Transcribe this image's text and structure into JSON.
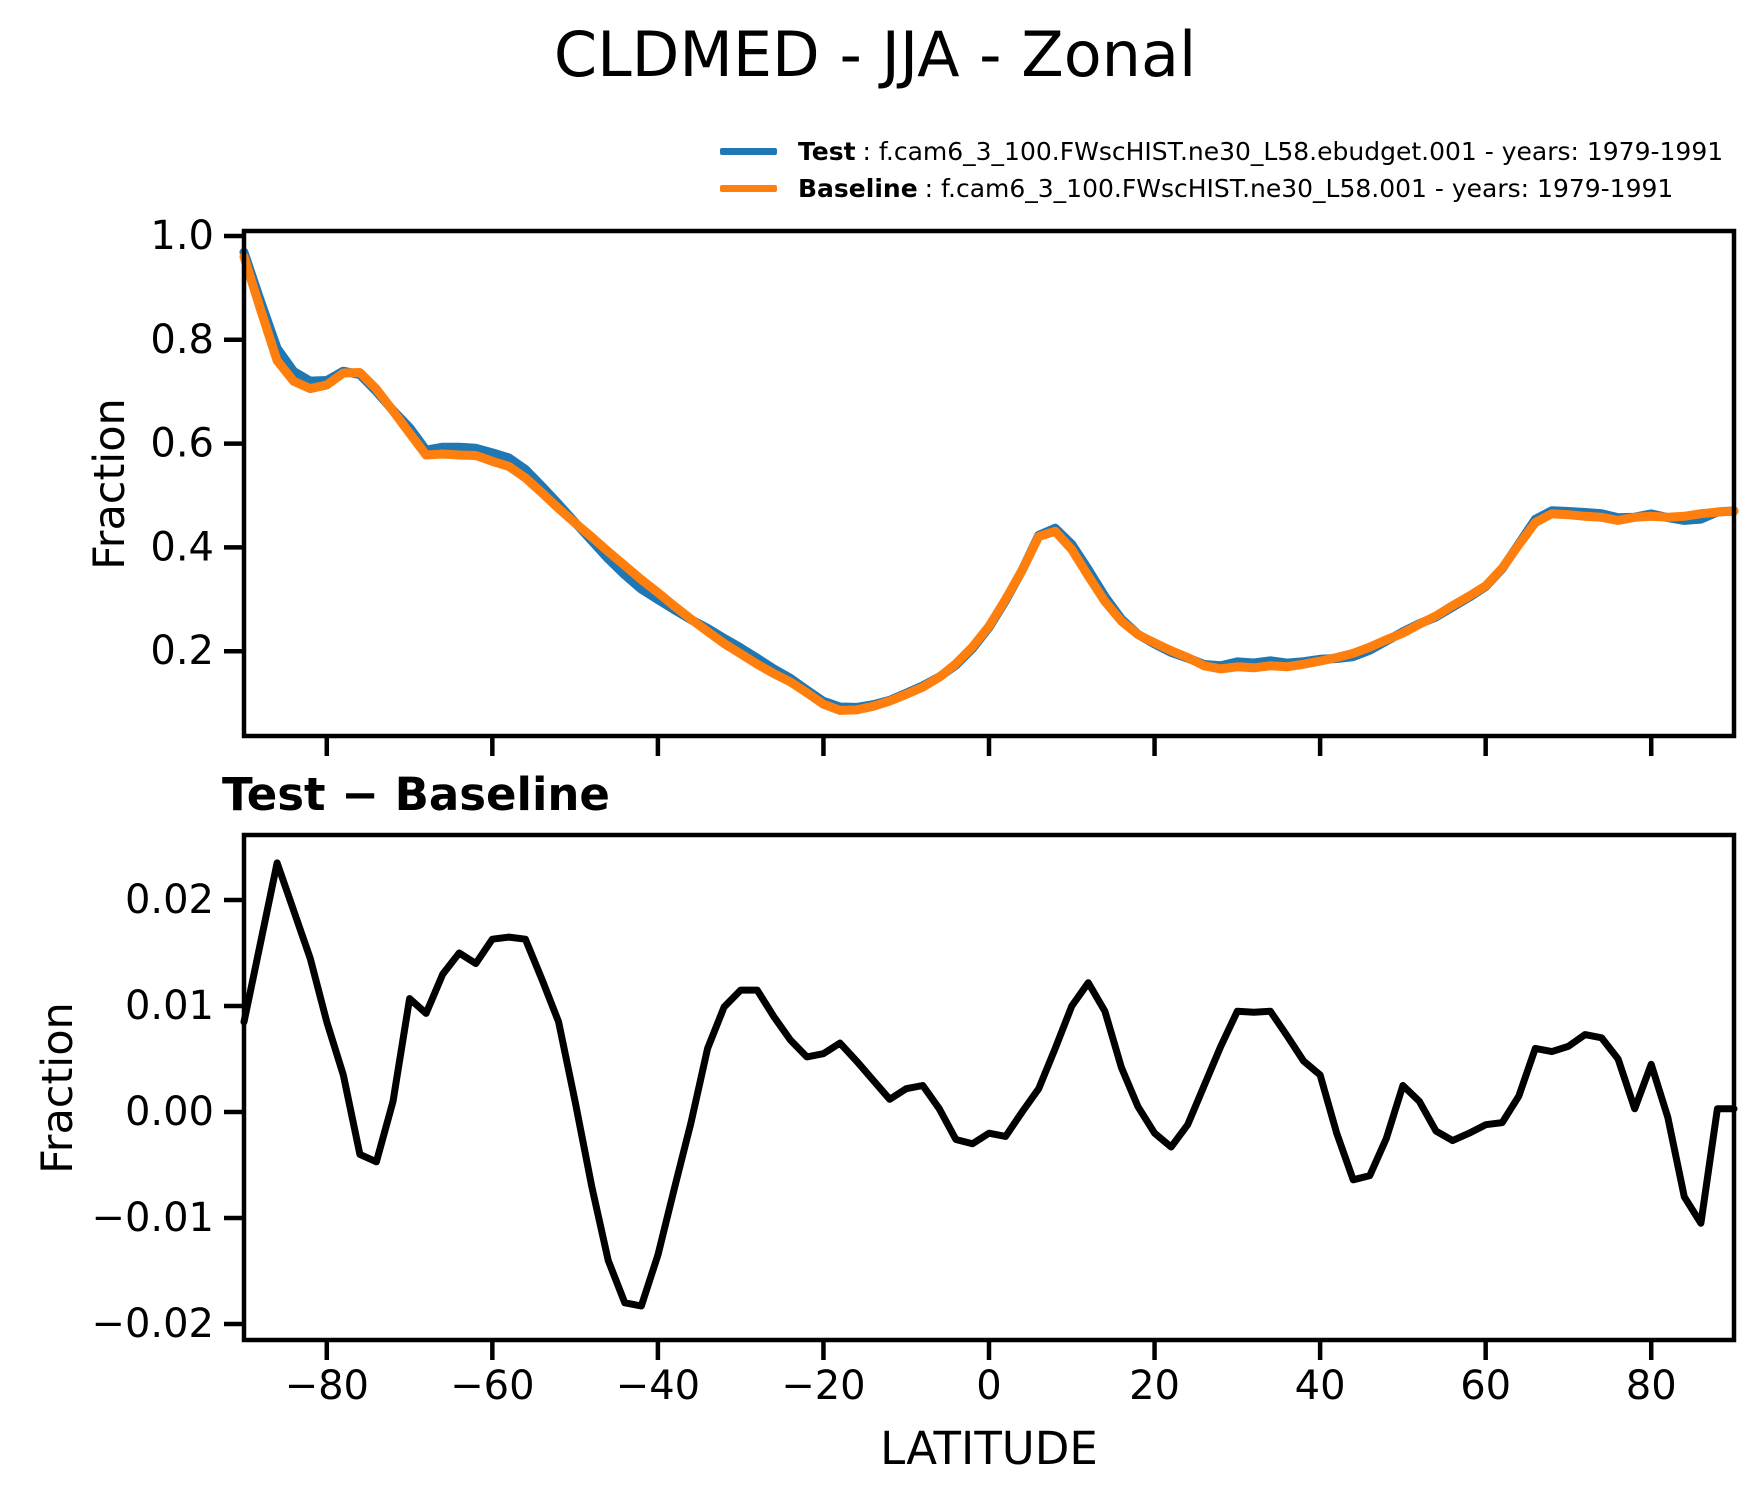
{
  "title": "CLDMED - JJA - Zonal",
  "legend": {
    "test_label": "Test",
    "test_desc": ": f.cam6_3_100.FWscHIST.ne30_L58.ebudget.001 - years: 1979-1991",
    "baseline_label": "Baseline",
    "baseline_desc": ": f.cam6_3_100.FWscHIST.ne30_L58.001 - years: 1979-1991"
  },
  "colors": {
    "test": "#1f77b4",
    "baseline": "#ff7f0e",
    "diff": "#000000",
    "axis": "#000000"
  },
  "chart_data": [
    {
      "type": "line",
      "title": "CLDMED - JJA - Zonal",
      "xlabel": "LATITUDE",
      "ylabel": "Fraction",
      "xlim": [
        -90,
        90
      ],
      "ylim": [
        0.0367,
        1.0096
      ],
      "grid": false,
      "legend_position": "above upper right",
      "xticks": [
        -80,
        -60,
        -40,
        -20,
        0,
        20,
        40,
        60,
        80
      ],
      "xtick_labels": [
        "−80",
        "−60",
        "−40",
        "−20",
        "0",
        "20",
        "40",
        "60",
        "80"
      ],
      "yticks": [
        1.0,
        0.8,
        0.6,
        0.4,
        0.2
      ],
      "ytick_labels": [
        "1.0",
        "0.8",
        "0.6",
        "0.4",
        "0.2"
      ],
      "x": [
        -90,
        -88,
        -86,
        -84,
        -82,
        -80,
        -78,
        -76,
        -74,
        -72,
        -70,
        -68,
        -66,
        -64,
        -62,
        -60,
        -58,
        -56,
        -54,
        -52,
        -50,
        -48,
        -46,
        -44,
        -42,
        -40,
        -38,
        -36,
        -34,
        -32,
        -30,
        -28,
        -26,
        -24,
        -22,
        -20,
        -18,
        -16,
        -14,
        -12,
        -10,
        -8,
        -6,
        -4,
        -2,
        0,
        2,
        4,
        6,
        8,
        10,
        12,
        14,
        16,
        18,
        20,
        22,
        24,
        26,
        28,
        30,
        32,
        34,
        36,
        38,
        40,
        42,
        44,
        46,
        48,
        50,
        52,
        54,
        56,
        58,
        60,
        62,
        64,
        66,
        68,
        70,
        72,
        74,
        76,
        78,
        80,
        82,
        84,
        86,
        88,
        90
      ],
      "series": [
        {
          "name": "Test",
          "color": "#1f77b4",
          "values": [
            0.9685,
            0.874,
            0.7835,
            0.739,
            0.7205,
            0.7215,
            0.7395,
            0.733,
            0.7003,
            0.664,
            0.6307,
            0.5873,
            0.593,
            0.593,
            0.591,
            0.5823,
            0.5725,
            0.5503,
            0.5175,
            0.4835,
            0.448,
            0.413,
            0.378,
            0.347,
            0.3197,
            0.2995,
            0.2798,
            0.261,
            0.244,
            0.2249,
            0.2065,
            0.1865,
            0.166,
            0.1478,
            0.1252,
            0.1035,
            0.0925,
            0.0918,
            0.097,
            0.1052,
            0.1192,
            0.1335,
            0.1503,
            0.1734,
            0.205,
            0.246,
            0.2977,
            0.356,
            0.4232,
            0.437,
            0.406,
            0.3572,
            0.3055,
            0.2622,
            0.2325,
            0.214,
            0.1977,
            0.1868,
            0.1745,
            0.1722,
            0.1795,
            0.1774,
            0.1815,
            0.1772,
            0.1798,
            0.1845,
            0.186,
            0.1896,
            0.202,
            0.2195,
            0.2375,
            0.253,
            0.2662,
            0.2853,
            0.304,
            0.3248,
            0.359,
            0.4065,
            0.454,
            0.4707,
            0.4692,
            0.4673,
            0.465,
            0.457,
            0.4583,
            0.4645,
            0.4575,
            0.452,
            0.4545,
            0.4683,
            0.4703
          ]
        },
        {
          "name": "Baseline",
          "color": "#ff7f0e",
          "values": [
            0.96,
            0.858,
            0.76,
            0.72,
            0.706,
            0.713,
            0.736,
            0.737,
            0.705,
            0.663,
            0.62,
            0.578,
            0.58,
            0.578,
            0.577,
            0.566,
            0.556,
            0.534,
            0.505,
            0.475,
            0.447,
            0.42,
            0.392,
            0.365,
            0.338,
            0.313,
            0.287,
            0.262,
            0.238,
            0.215,
            0.195,
            0.175,
            0.157,
            0.141,
            0.12,
            0.098,
            0.086,
            0.087,
            0.094,
            0.104,
            0.117,
            0.131,
            0.15,
            0.176,
            0.208,
            0.248,
            0.3,
            0.356,
            0.421,
            0.431,
            0.396,
            0.345,
            0.296,
            0.258,
            0.232,
            0.216,
            0.201,
            0.188,
            0.172,
            0.166,
            0.17,
            0.168,
            0.172,
            0.17,
            0.175,
            0.181,
            0.188,
            0.196,
            0.208,
            0.222,
            0.235,
            0.252,
            0.268,
            0.288,
            0.306,
            0.326,
            0.36,
            0.405,
            0.448,
            0.465,
            0.463,
            0.46,
            0.458,
            0.452,
            0.458,
            0.46,
            0.458,
            0.46,
            0.465,
            0.468,
            0.47
          ]
        }
      ]
    },
    {
      "type": "line",
      "title": "Test − Baseline",
      "xlabel": "LATITUDE",
      "ylabel": "Fraction",
      "xlim": [
        -90,
        90
      ],
      "ylim": [
        -0.02151,
        0.02613
      ],
      "grid": false,
      "xticks": [
        -80,
        -60,
        -40,
        -20,
        0,
        20,
        40,
        60,
        80
      ],
      "xtick_labels": [
        "−80",
        "−60",
        "−40",
        "−20",
        "0",
        "20",
        "40",
        "60",
        "80"
      ],
      "yticks": [
        0.02,
        0.01,
        0.0,
        -0.01,
        -0.02
      ],
      "ytick_labels": [
        "0.02",
        "0.01",
        "0.00",
        "−0.01",
        "−0.02"
      ],
      "x": [
        -90,
        -88,
        -86,
        -84,
        -82,
        -80,
        -78,
        -76,
        -74,
        -72,
        -70,
        -68,
        -66,
        -64,
        -62,
        -60,
        -58,
        -56,
        -54,
        -52,
        -50,
        -48,
        -46,
        -44,
        -42,
        -40,
        -38,
        -36,
        -34,
        -32,
        -30,
        -28,
        -26,
        -24,
        -22,
        -20,
        -18,
        -16,
        -14,
        -12,
        -10,
        -8,
        -6,
        -4,
        -2,
        0,
        2,
        4,
        6,
        8,
        10,
        12,
        14,
        16,
        18,
        20,
        22,
        24,
        26,
        28,
        30,
        32,
        34,
        36,
        38,
        40,
        42,
        44,
        46,
        48,
        50,
        52,
        54,
        56,
        58,
        60,
        62,
        64,
        66,
        68,
        70,
        72,
        74,
        76,
        78,
        80,
        82,
        84,
        86,
        88,
        90
      ],
      "series": [
        {
          "name": "Test − Baseline",
          "color": "#000000",
          "values": [
            0.0085,
            0.016,
            0.0235,
            0.019,
            0.0145,
            0.0085,
            0.0035,
            -0.004,
            -0.0047,
            0.001,
            0.0107,
            0.0093,
            0.013,
            0.015,
            0.014,
            0.0163,
            0.0165,
            0.0163,
            0.0125,
            0.0085,
            0.001,
            -0.007,
            -0.014,
            -0.018,
            -0.0183,
            -0.0135,
            -0.0072,
            -0.001,
            0.006,
            0.0099,
            0.0115,
            0.0115,
            0.009,
            0.0068,
            0.0052,
            0.0055,
            0.0065,
            0.0048,
            0.003,
            0.0012,
            0.0022,
            0.0025,
            0.0003,
            -0.0026,
            -0.003,
            -0.002,
            -0.0023,
            0.0,
            0.0022,
            0.006,
            0.01,
            0.0122,
            0.0095,
            0.0042,
            0.0005,
            -0.002,
            -0.0033,
            -0.0012,
            0.0025,
            0.0062,
            0.0095,
            0.0094,
            0.0095,
            0.0072,
            0.0048,
            0.0035,
            -0.002,
            -0.0064,
            -0.006,
            -0.0025,
            0.0025,
            0.001,
            -0.0018,
            -0.0027,
            -0.002,
            -0.0012,
            -0.001,
            0.0015,
            0.006,
            0.0057,
            0.0062,
            0.0073,
            0.007,
            0.005,
            0.0003,
            0.0045,
            -0.0005,
            -0.008,
            -0.0105,
            0.0003,
            0.0003
          ]
        }
      ]
    }
  ]
}
